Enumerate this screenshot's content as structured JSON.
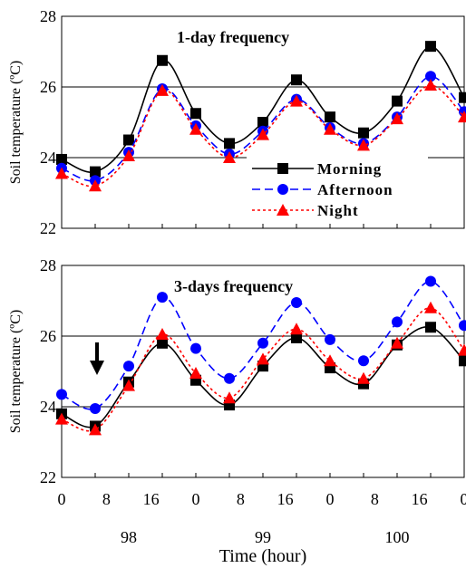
{
  "chart_data": [
    {
      "type": "line",
      "title": "1-day frequency",
      "ylabel": "Soil temperature (ºC)",
      "ylim": [
        22,
        28
      ],
      "yticks": [
        22,
        24,
        26,
        28
      ],
      "x": [
        0,
        8,
        16,
        24,
        32,
        40,
        48,
        56,
        64,
        72,
        80,
        88,
        96
      ],
      "grid": "horizontal",
      "legend_position": "bottom-right",
      "series": [
        {
          "name": "Morning",
          "color": "#000000",
          "line": "solid",
          "marker": "square",
          "values": [
            23.95,
            23.6,
            24.5,
            26.75,
            25.25,
            24.4,
            25.0,
            26.2,
            25.15,
            24.7,
            25.6,
            27.15,
            25.7
          ]
        },
        {
          "name": "Afternoon",
          "color": "#0000ff",
          "line": "dashed",
          "marker": "circle",
          "values": [
            23.7,
            23.35,
            24.15,
            25.95,
            24.9,
            24.1,
            24.75,
            25.65,
            24.85,
            24.4,
            25.15,
            26.3,
            25.3
          ]
        },
        {
          "name": "Night",
          "color": "#ff0000",
          "line": "dotted",
          "marker": "triangle",
          "values": [
            23.55,
            23.2,
            24.05,
            25.9,
            24.8,
            24.0,
            24.65,
            25.6,
            24.8,
            24.35,
            25.1,
            26.05,
            25.15
          ]
        }
      ]
    },
    {
      "type": "line",
      "title": "3-days frequency",
      "ylabel": "Soil temperature (ºC)",
      "ylim": [
        22,
        28
      ],
      "yticks": [
        22,
        24,
        26,
        28
      ],
      "x": [
        0,
        8,
        16,
        24,
        32,
        40,
        48,
        56,
        64,
        72,
        80,
        88,
        96
      ],
      "xtick_labels": [
        "0",
        "8",
        "16",
        "0",
        "8",
        "16",
        "0",
        "8",
        "16",
        "0"
      ],
      "day_labels": [
        "98",
        "99",
        "100"
      ],
      "xlabel": "Time (hour)",
      "grid": "horizontal",
      "arrow_marker_x": 8,
      "series": [
        {
          "name": "Morning",
          "color": "#000000",
          "line": "solid",
          "marker": "square",
          "values": [
            23.8,
            23.45,
            24.7,
            25.8,
            24.75,
            24.05,
            25.15,
            25.95,
            25.1,
            24.65,
            25.75,
            26.25,
            25.3
          ]
        },
        {
          "name": "Afternoon",
          "color": "#0000ff",
          "line": "dashed",
          "marker": "circle",
          "values": [
            24.35,
            23.95,
            25.15,
            27.1,
            25.65,
            24.8,
            25.8,
            26.95,
            25.9,
            25.3,
            26.4,
            27.55,
            26.3
          ]
        },
        {
          "name": "Night",
          "color": "#ff0000",
          "line": "dotted",
          "marker": "triangle",
          "values": [
            23.65,
            23.35,
            24.6,
            26.05,
            24.95,
            24.25,
            25.35,
            26.2,
            25.3,
            24.8,
            25.8,
            26.8,
            25.6
          ]
        }
      ]
    }
  ]
}
